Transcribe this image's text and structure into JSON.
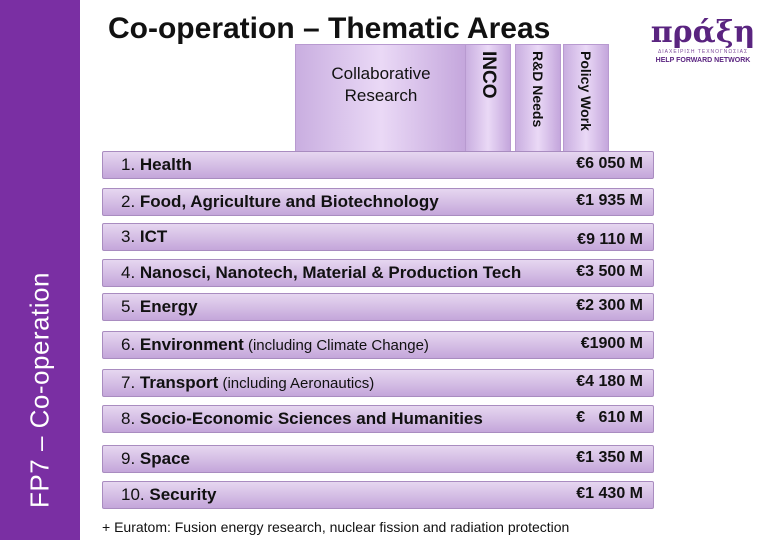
{
  "sidebar": {
    "label": "FP7 – Co-operation"
  },
  "title": "Co-operation – Thematic Areas",
  "logo": {
    "word": "πράξη",
    "subtitle": "ΔΙΑΧΕΙΡΙΣΗ ΤΕΧΝΟΓΝΩΣΙΑΣ",
    "tagline": "HELP FORWARD NETWORK"
  },
  "pillars": {
    "collaborative": "Collaborative Research",
    "inco": "INCO",
    "rd_needs": "R&D Needs",
    "policy": "Policy Work"
  },
  "areas": [
    {
      "num": "1. ",
      "name": "Health",
      "extra": "",
      "value": "€6 050 M"
    },
    {
      "num": "2. ",
      "name": "Food, Agriculture and Biotechnology",
      "extra": "",
      "value": "€1 935 M"
    },
    {
      "num": "3. ",
      "name": "ICT",
      "extra": "",
      "value": "€9 110 M"
    },
    {
      "num": "4. ",
      "name": "Nanosci, Nanotech, Material & Production Tech",
      "extra": "",
      "value": "€3 500 M"
    },
    {
      "num": "5. ",
      "name": "Energy",
      "extra": "",
      "value": "€2 300 M"
    },
    {
      "num": "6. ",
      "name": "Environment",
      "extra": " (including Climate Change)",
      "value": "€1900 M"
    },
    {
      "num": "7. ",
      "name": "Transport",
      "extra": " (including Aeronautics)",
      "value": "€4 180 M"
    },
    {
      "num": "8. ",
      "name": "Socio-Economic Sciences and Humanities",
      "extra": "",
      "value": "€   610 M"
    },
    {
      "num": "9. ",
      "name": "Space",
      "extra": "",
      "value": "€1 350 M"
    },
    {
      "num": "10. ",
      "name": "Security",
      "extra": "",
      "value": "€1 430 M"
    }
  ],
  "footnote": "+ Euratom: Fusion energy research, nuclear fission and radiation protection"
}
